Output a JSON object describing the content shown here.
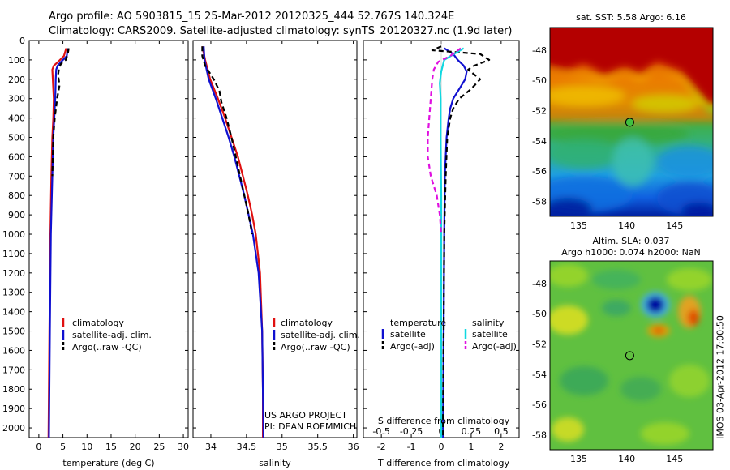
{
  "title": {
    "line1": "Argo profile: AO 5903815_15 25-Mar-2012 20120325_444 52.767S 140.324E",
    "line2": "Climatology: CARS2009. Satellite-adjusted climatology: synTS_20120327.nc (1.9d later)"
  },
  "colors": {
    "climatology": "#e01010",
    "satellite": "#1010d0",
    "argo": "#000000",
    "cyan": "#10d8e0",
    "magenta": "#e010e0"
  },
  "chart_data": [
    {
      "type": "line",
      "id": "temperature",
      "xlabel": "temperature (deg C)",
      "ylabel": "",
      "xlim": [
        -2,
        31
      ],
      "ylim": [
        2050,
        0
      ],
      "xticks": [
        0,
        5,
        10,
        15,
        20,
        25,
        30
      ],
      "yticks": [
        0,
        100,
        200,
        300,
        400,
        500,
        600,
        700,
        800,
        900,
        1000,
        1100,
        1200,
        1300,
        1400,
        1500,
        1600,
        1700,
        1800,
        1900,
        2000
      ],
      "legend": [
        "climatology",
        "satellite-adj. clim.",
        "Argo(..raw -QC)"
      ],
      "series": [
        {
          "name": "climatology",
          "color": "#e01010",
          "dash": "",
          "depth": [
            40,
            80,
            110,
            130,
            150,
            200,
            300,
            400,
            500,
            700,
            1000,
            1500,
            2050
          ],
          "value": [
            5.7,
            5.2,
            4.0,
            3.1,
            2.8,
            2.9,
            3.1,
            3.0,
            2.8,
            2.6,
            2.4,
            2.2,
            2.0
          ]
        },
        {
          "name": "satellite-adj. clim.",
          "color": "#1010d0",
          "dash": "",
          "depth": [
            40,
            80,
            110,
            130,
            150,
            200,
            300,
            400,
            500,
            700,
            1000,
            1500,
            2050
          ],
          "value": [
            6.0,
            5.8,
            4.6,
            3.9,
            3.6,
            3.5,
            3.4,
            3.2,
            3.0,
            2.8,
            2.5,
            2.3,
            2.1
          ]
        },
        {
          "name": "Argo(..raw -QC)",
          "color": "#000000",
          "dash": "6,4",
          "depth": [
            40,
            70,
            100,
            120,
            140,
            180,
            230,
            300,
            400,
            500,
            600,
            700
          ],
          "value": [
            6.2,
            6.0,
            5.6,
            4.6,
            4.2,
            4.0,
            4.3,
            3.8,
            3.3,
            3.0,
            2.9,
            2.8
          ]
        }
      ]
    },
    {
      "type": "line",
      "id": "salinity",
      "xlabel": "salinity",
      "ylabel": "",
      "xlim": [
        33.75,
        36.05
      ],
      "ylim": [
        2050,
        0
      ],
      "xticks": [
        34,
        34.5,
        35,
        35.5,
        36
      ],
      "yticks": [],
      "legend": [
        "climatology",
        "satellite-adj. clim.",
        "Argo(..raw -QC)"
      ],
      "annotation": [
        "US ARGO PROJECT",
        "PI: DEAN ROEMMICH"
      ],
      "series": [
        {
          "name": "climatology",
          "color": "#e01010",
          "dash": "",
          "depth": [
            30,
            100,
            200,
            300,
            400,
            500,
            600,
            700,
            800,
            900,
            1000,
            1200,
            1500,
            1800,
            2050
          ],
          "value": [
            33.88,
            33.92,
            33.99,
            34.1,
            34.2,
            34.29,
            34.38,
            34.45,
            34.52,
            34.58,
            34.63,
            34.69,
            34.72,
            34.73,
            34.73
          ]
        },
        {
          "name": "satellite-adj. clim.",
          "color": "#1010d0",
          "dash": "",
          "depth": [
            30,
            100,
            200,
            300,
            400,
            500,
            600,
            700,
            800,
            900,
            1000,
            1200,
            1500,
            1800,
            2050
          ],
          "value": [
            33.9,
            33.91,
            33.97,
            34.07,
            34.16,
            34.25,
            34.33,
            34.4,
            34.47,
            34.53,
            34.59,
            34.67,
            34.72,
            34.73,
            34.74
          ]
        },
        {
          "name": "Argo(..raw -QC)",
          "color": "#000000",
          "dash": "6,4",
          "depth": [
            30,
            80,
            130,
            200,
            260,
            320,
            400,
            500,
            600,
            700,
            800,
            900,
            1000
          ],
          "value": [
            33.88,
            33.88,
            33.92,
            34.04,
            34.12,
            34.15,
            34.22,
            34.29,
            34.35,
            34.41,
            34.47,
            34.53,
            34.58
          ]
        }
      ]
    },
    {
      "type": "line",
      "id": "difference",
      "xlabel": "T difference from climatology",
      "xlabel_top": "S difference from climatology",
      "ylabel": "",
      "xlim": [
        -2.6,
        2.6
      ],
      "ylim": [
        2050,
        0
      ],
      "xticks": [
        -2,
        -1,
        0,
        1,
        2
      ],
      "xticks_top": [
        -0.5,
        -0.25,
        0,
        0.25,
        0.5
      ],
      "yticks": [],
      "legend_temperature": {
        "title": "temperature",
        "items": [
          "satellite",
          "Argo(-adj)"
        ]
      },
      "legend_salinity": {
        "title": "salinity",
        "items": [
          "satellite",
          "Argo(-adj)"
        ]
      },
      "series": [
        {
          "name": "temperature satellite",
          "color": "#1010d0",
          "dash": "",
          "depth": [
            40,
            70,
            100,
            130,
            160,
            200,
            250,
            300,
            350,
            400,
            500,
            700,
            1000,
            1500,
            2050
          ],
          "value": [
            0.1,
            0.4,
            0.55,
            0.75,
            0.85,
            0.8,
            0.6,
            0.4,
            0.3,
            0.25,
            0.18,
            0.12,
            0.1,
            0.08,
            0.06
          ]
        },
        {
          "name": "temperature Argo(-adj)",
          "color": "#000000",
          "dash": "6,4",
          "depth": [
            30,
            50,
            70,
            100,
            130,
            150,
            200,
            250,
            300,
            350,
            400,
            500,
            700,
            1000,
            1500,
            2050
          ],
          "value": [
            0.0,
            -0.3,
            1.3,
            1.6,
            1.1,
            0.9,
            1.3,
            1.0,
            0.6,
            0.4,
            0.3,
            0.2,
            0.15,
            0.1,
            0.08,
            0.05
          ]
        },
        {
          "name": "salinity satellite",
          "color": "#10d8e0",
          "dash": "",
          "depth": [
            40,
            100,
            160,
            220,
            300,
            500,
            800,
            1200,
            1600,
            2050
          ],
          "value": [
            0.75,
            0.1,
            0.0,
            -0.05,
            -0.02,
            -0.02,
            0.0,
            0.0,
            0.0,
            0.0
          ]
        },
        {
          "name": "salinity Argo(-adj)",
          "color": "#e010e0",
          "dash": "6,4",
          "depth": [
            40,
            80,
            110,
            150,
            200,
            300,
            400,
            500,
            600,
            700,
            800,
            900,
            1000
          ],
          "value": [
            0.65,
            0.3,
            -0.1,
            -0.25,
            -0.3,
            -0.35,
            -0.4,
            -0.45,
            -0.45,
            -0.35,
            -0.15,
            -0.05,
            0.0
          ]
        }
      ]
    },
    {
      "type": "heatmap",
      "id": "sst-map",
      "title": "sat. SST: 5.58 Argo: 6.16",
      "xlim": [
        132,
        149
      ],
      "ylim": [
        -59,
        -46.5
      ],
      "xticks": [
        135,
        140,
        145
      ],
      "yticks": [
        -48,
        -50,
        -52,
        -54,
        -56,
        -58
      ],
      "marker": {
        "lon": 140.324,
        "lat": -52.767
      }
    },
    {
      "type": "heatmap",
      "id": "sla-map",
      "title_line1": "Altim. SLA: 0.037",
      "title_line2": "Argo h1000: 0.074 h2000: NaN",
      "xlim": [
        132,
        149
      ],
      "ylim": [
        -59,
        -46.5
      ],
      "xticks": [
        135,
        140,
        145
      ],
      "yticks": [
        -48,
        -50,
        -52,
        -54,
        -56,
        -58
      ],
      "marker": {
        "lon": 140.324,
        "lat": -52.767
      }
    }
  ],
  "footer": {
    "stamp": "IMOS 03-Apr-2012 17:00:50"
  }
}
